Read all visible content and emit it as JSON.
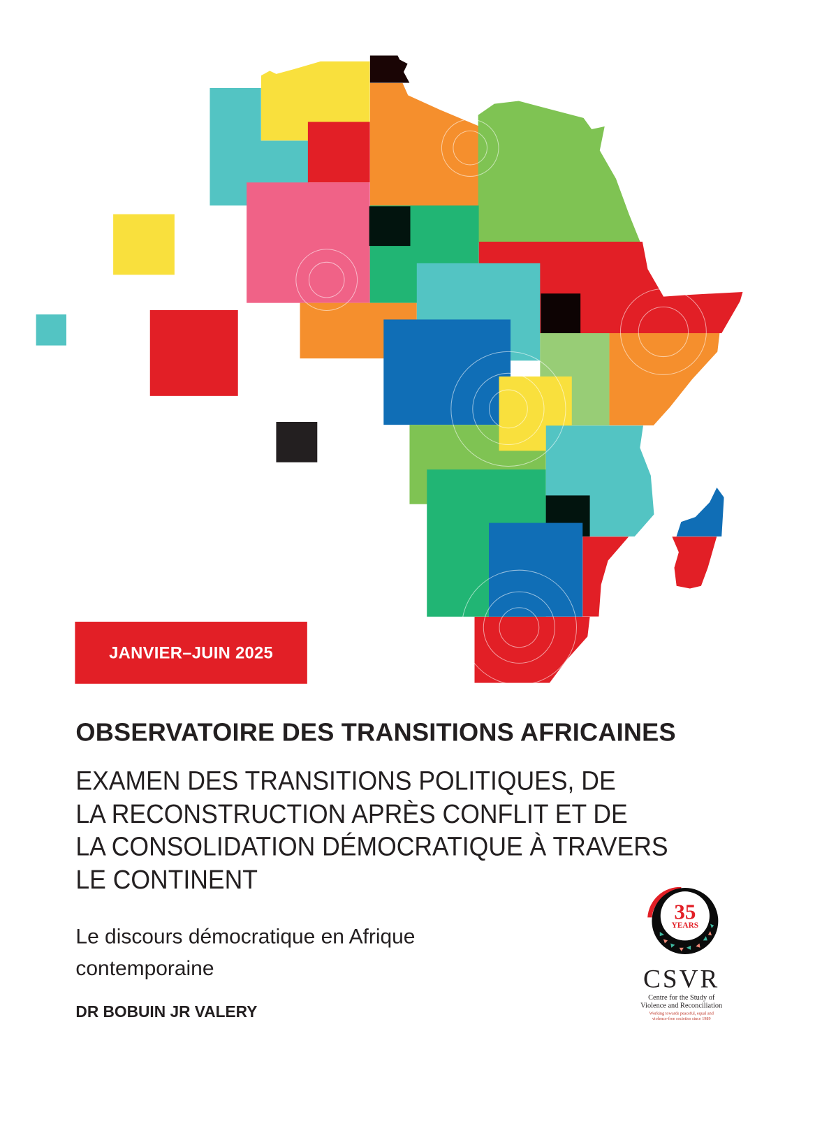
{
  "cover": {
    "period_badge": "JANVIER–JUIN 2025",
    "title": "OBSERVATOIRE DES TRANSITIONS AFRICAINES",
    "subtitle_lines": [
      "EXAMEN DES TRANSITIONS POLITIQUES, DE",
      "LA RECONSTRUCTION APRÈS CONFLIT ET DE",
      "LA CONSOLIDATION DÉMOCRATIQUE À TRAVERS",
      "LE CONTINENT"
    ],
    "topic_lines": [
      "Le discours démocratique en Afrique",
      "contemporaine"
    ],
    "author": "DR BOBUIN JR VALERY"
  },
  "logo": {
    "anniversary_number": "35",
    "anniversary_label": "YEARS",
    "acronym": "CSVR",
    "full_name_lines": [
      "Centre for the Study of",
      "Violence and Reconciliation"
    ],
    "tagline_lines": [
      "Working towards peaceful, equal and",
      "violence-free societies since 1989"
    ]
  },
  "colors": {
    "red": "#e21f26",
    "orange": "#f58f2d",
    "yellow": "#f9e03d",
    "cyan": "#53c4c3",
    "green": "#7fc353",
    "teal_green": "#21b574",
    "pink": "#f06287",
    "blue": "#106eb6",
    "light_green": "#98cd76",
    "black": "#0a0f0f"
  }
}
